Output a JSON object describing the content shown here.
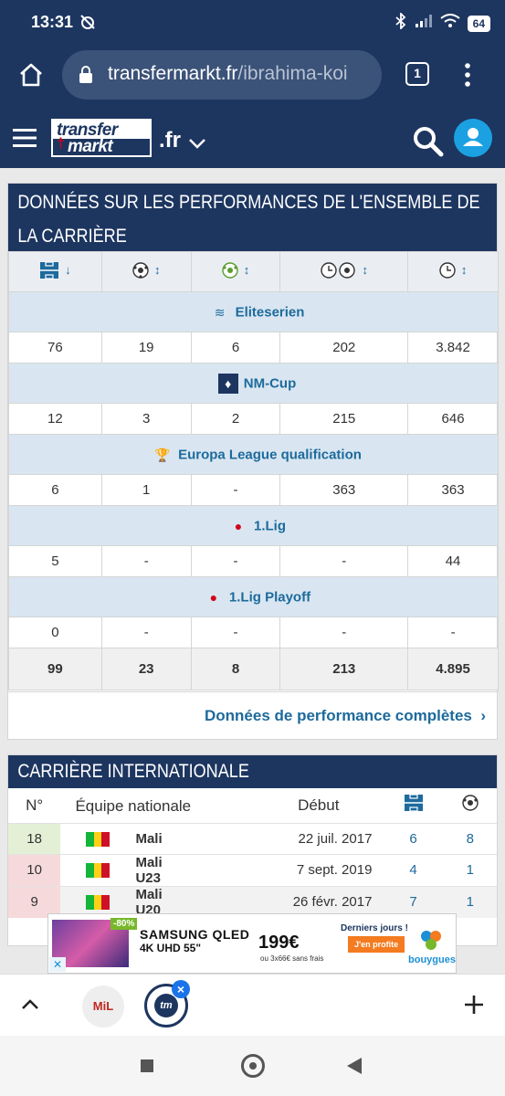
{
  "status_bar": {
    "time": "13:31",
    "battery": "64"
  },
  "browser": {
    "url_domain": "transfermarkt.fr",
    "url_path": "/ibrahima-koi",
    "tab_count": "1"
  },
  "site_header": {
    "logo_top": "transfer",
    "logo_bottom": "markt",
    "domain_label": ".fr"
  },
  "performance": {
    "title": "DONNÉES SUR LES PERFORMANCES DE L'ENSEMBLE DE LA CARRIÈRE",
    "column_icons": [
      "appearances-icon",
      "goals-icon",
      "assists-icon",
      "minutes-per-goal-icon",
      "minutes-played-icon"
    ],
    "competitions": [
      {
        "name": "Eliteserien",
        "appearances": "76",
        "goals": "19",
        "assists": "6",
        "minutes_per_goal": "202",
        "minutes": "3.842"
      },
      {
        "name": "NM-Cup",
        "appearances": "12",
        "goals": "3",
        "assists": "2",
        "minutes_per_goal": "215",
        "minutes": "646"
      },
      {
        "name": "Europa League qualification",
        "appearances": "6",
        "goals": "1",
        "assists": "-",
        "minutes_per_goal": "363",
        "minutes": "363"
      },
      {
        "name": "1.Lig",
        "appearances": "5",
        "goals": "-",
        "assists": "-",
        "minutes_per_goal": "-",
        "minutes": "44"
      },
      {
        "name": "1.Lig Playoff",
        "appearances": "0",
        "goals": "-",
        "assists": "-",
        "minutes_per_goal": "-",
        "minutes": "-"
      }
    ],
    "totals": {
      "appearances": "99",
      "goals": "23",
      "assists": "8",
      "minutes_per_goal": "213",
      "minutes": "4.895"
    },
    "link_label": "Données de performance complètes"
  },
  "international": {
    "title": "CARRIÈRE INTERNATIONALE",
    "headers": {
      "number": "N°",
      "team": "Équipe nationale",
      "debut": "Début"
    },
    "rows": [
      {
        "number": "18",
        "team": "Mali",
        "debut": "22 juil. 2017",
        "appearances": "6",
        "goals": "8",
        "status_color": "#e4f0d6",
        "debut_link": false
      },
      {
        "number": "10",
        "team": "Mali U23",
        "debut": "7 sept. 2019",
        "appearances": "4",
        "goals": "1",
        "status_color": "#f6dadb",
        "debut_link": true
      },
      {
        "number": "9",
        "team": "Mali U20",
        "debut": "26 févr. 2017",
        "appearances": "7",
        "goals": "1",
        "status_color": "#f6dadb",
        "debut_link": false
      }
    ]
  },
  "ad": {
    "discount": "-80%",
    "brand": "SAMSUNG QLED",
    "model": "4K UHD 55\"",
    "price": "199€",
    "price_note": "ou 3x66€ sans frais",
    "offer": "Derniers jours !",
    "cta": "J'en profite",
    "advertiser": "bouygues"
  },
  "tabs": {
    "tab1_label": "MiL"
  },
  "colors": {
    "navy": "#1d3660",
    "link": "#1d6a9c",
    "row_blue": "#d9e6f1",
    "accent_blue": "#1ba1e2"
  }
}
